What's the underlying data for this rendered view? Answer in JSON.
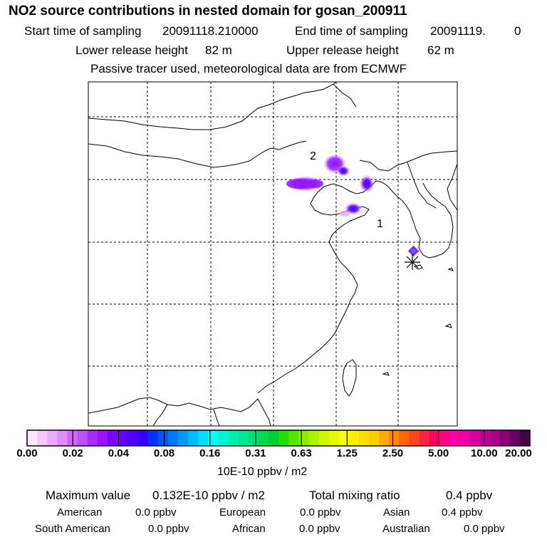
{
  "header": {
    "title": "NO2 source contributions in nested domain for gosan_200911",
    "start_label": "Start time of sampling",
    "start_value": "20091118.210000",
    "end_label": "End time of sampling",
    "end_value": "20091119.",
    "end_value2": "0",
    "lower_label": "Lower release height",
    "lower_value": "82 m",
    "upper_label": "Upper release height",
    "upper_value": "62 m",
    "note": "Passive tracer used, meteorological data are from ECMWF"
  },
  "map": {
    "region_labels": [
      "2",
      "1"
    ],
    "receptor_marker": "asterisk-icon",
    "colors": {
      "plume": "#9b1cff",
      "plume_light": "#e9a6ff",
      "peak": "#1a1aff",
      "receptor_core": "#3a6bff"
    }
  },
  "colorbar": {
    "colors": [
      "#fbe6ff",
      "#f4c8ff",
      "#eda9ff",
      "#e48aff",
      "#d166ff",
      "#bf4fff",
      "#aa2bff",
      "#9a12ff",
      "#8000ff",
      "#6600ff",
      "#4d00ff",
      "#3300ff",
      "#0033ff",
      "#0055ff",
      "#0077ff",
      "#0099ff",
      "#00bbff",
      "#00ddff",
      "#00ffff",
      "#00f5d0",
      "#00eeb0",
      "#00e890",
      "#00e070",
      "#00d850",
      "#00cc33",
      "#22dd00",
      "#55e600",
      "#88ee00",
      "#aaf200",
      "#ccf500",
      "#e6f800",
      "#ffff00",
      "#fff000",
      "#ffdd00",
      "#ffcc00",
      "#ffaa00",
      "#ff8800",
      "#ff6600",
      "#ff4422",
      "#ff2244",
      "#ff0066",
      "#ff0088",
      "#ff00aa",
      "#ee00aa",
      "#d8009e",
      "#c00095",
      "#aa0088",
      "#880077",
      "#660066",
      "#440044"
    ],
    "labels": [
      "0.00",
      "0.02",
      "0.04",
      "0.08",
      "0.16",
      "0.31",
      "0.63",
      "1.25",
      "2.50",
      "5.00",
      "10.00",
      "20.00"
    ],
    "units": "10E-10 ppbv / m2"
  },
  "summary": {
    "max_label": "Maximum value",
    "max_value": "0.132E-10 ppbv / m2",
    "total_label": "Total mixing ratio",
    "total_value": "0.4 ppbv",
    "american_label": "American",
    "american_value": "0.0 ppbv",
    "european_label": "European",
    "european_value": "0.0 ppbv",
    "asian_label": "Asian",
    "asian_value": "0.4 ppbv",
    "samerican_label": "South American",
    "samerican_value": "0.0 ppbv",
    "african_label": "African",
    "african_value": "0.0 ppbv",
    "australian_label": "Australian",
    "australian_value": "0.0 ppbv"
  }
}
